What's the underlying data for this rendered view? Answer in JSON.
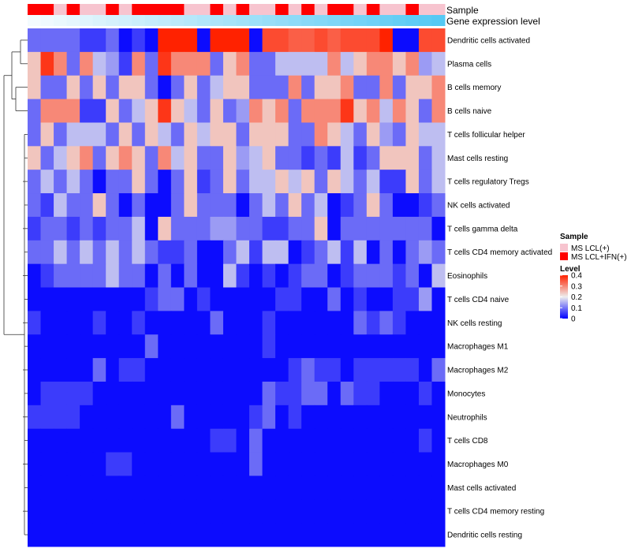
{
  "chart_data": {
    "type": "heatmap",
    "title": "",
    "annotations": {
      "sample_label": "Sample",
      "expression_label": "Gene expression level"
    },
    "sample_groups": [
      "MS LCL(+)",
      "MS LCL+IFN(+)"
    ],
    "sample_group_colors": [
      "#f7c4cf",
      "#ff0000"
    ],
    "sample_pattern": "RRPRPPRPRRRRPPRPRPPRPRPRRPRPPRPP",
    "expression_gradient": [
      "#f4fbfe",
      "#55c9f4"
    ],
    "rows": [
      "Dendritic cells activated",
      "Plasma cells",
      "B cells memory",
      "B cells naive",
      "T cells follicular helper",
      "Mast cells resting",
      "T cells regulatory  Tregs",
      "NK cells activated",
      "T cells gamma delta",
      "T cells CD4 memory activated",
      "Eosinophils",
      "T cells CD4 naive",
      "NK cells resting",
      "Macrophages M1",
      "Macrophages M2",
      "Monocytes",
      "Neutrophils",
      "T cells CD8",
      "Macrophages M0",
      "Mast cells activated",
      "T cells CD4 memory resting",
      "Dendritic cells resting"
    ],
    "values": [
      "ffffggfhghiiihiiihjjkkjkjjjihhjj",
      "cabfbdegbfabbbfcbffddddbdcbbcbed",
      "cffcfcfccfhfcfdccfffbfccbffbfccb",
      "fbbbggcfdcacdfcfebcbfbbbacbdbcfb",
      "fcfdddfcfcdfcdccfcccffbcdfcefcdd",
      "cfdcbfcbcfbdcffcedcffgfgdgfcccfd",
      "fdfdfhffcfhfcgfcfddcdcfcdfdggcfd",
      "fgdffcfhfhhfcfffhfdfcfdhgfcfhhgf",
      "gffgfgffdhcfffeeffggffchfffffffh",
      "ffdfdfdfdfggfhhfdgddhgfdgdhfhfef",
      "hgffffdffhfhfhhdghghgffhgfffgfhd",
      "hhhhhhhhhgffhghhhhhgghhfhghhggeh",
      "ghhhhghhghhhhhfhhhghhhhhhfgfghhh",
      "hhhhhhhhhfhhhhhhhhghhhhhhhhhhhhh",
      "hhhhhfhgghhhhhhhhhhhgfgghggggghf",
      "hgggghhhhhhhhhhhhhfggffhfgghhhgh",
      "gggghhhhhhhfhhhhhgfhghhhhhhhhhhh",
      "hhhhhhhhhhhhhhgghfhhhhhhhhhhhhgh",
      "hhhhhhgghhhhhhhhhfhhhhhhhhhhhhhh",
      "hhhhhhhhhhhhhhhhhhhhhhhhhhhhhhhh",
      "hhhhhhhhhhhhhhhhhhhhhhhhhhhhhhhh",
      "hhhhhhhhhhhhhhhhhhhhhhhhhhhhhhhh"
    ],
    "value_palette": {
      "a": 0.38,
      "b": 0.3,
      "c": 0.24,
      "d": 0.16,
      "e": 0.13,
      "f": 0.09,
      "g": 0.05,
      "h": 0.01,
      "i": 0.4,
      "j": 0.36,
      "k": 0.34
    },
    "legend": {
      "sample_title": "Sample",
      "level_title": "Level",
      "level_ticks": [
        "0.4",
        "0.3",
        "0.2",
        "0.1",
        "0"
      ],
      "level_range": [
        0,
        0.4
      ],
      "position": "right"
    }
  }
}
